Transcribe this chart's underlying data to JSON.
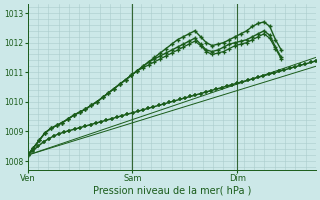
{
  "bg_color": "#cce8e8",
  "grid_color": "#aacccc",
  "line_color": "#1a5c1a",
  "marker_color": "#1a5c1a",
  "vline_color": "#336633",
  "ylim": [
    1007.7,
    1013.3
  ],
  "yticks": [
    1008,
    1009,
    1010,
    1011,
    1012,
    1013
  ],
  "xlabel": "Pression niveau de la mer( hPa )",
  "xtick_labels": [
    "Ven",
    "Sam",
    "Dim"
  ],
  "xtick_pos": [
    0.0,
    0.3636,
    0.7273
  ],
  "xlim": [
    0.0,
    1.0
  ],
  "vline_pos": [
    0.3636,
    0.7273
  ],
  "series_x": [
    [
      0.0,
      0.018,
      0.036,
      0.055,
      0.073,
      0.091,
      0.109,
      0.127,
      0.145,
      0.164,
      0.182,
      0.2,
      0.218,
      0.236,
      0.255,
      0.273,
      0.291,
      0.309,
      0.327,
      0.345,
      0.364,
      0.382,
      0.4,
      0.418,
      0.436,
      0.455,
      0.473,
      0.491,
      0.509,
      0.527,
      0.545,
      0.564,
      0.582,
      0.6,
      0.618,
      0.636,
      0.655,
      0.673,
      0.691,
      0.709,
      0.727,
      0.745,
      0.764,
      0.782,
      0.8,
      0.818,
      0.836,
      0.855,
      0.873,
      0.891,
      0.909,
      0.927,
      0.945,
      0.964,
      0.982,
      1.0
    ],
    [
      0.0,
      0.02,
      0.04,
      0.06,
      0.08,
      0.1,
      0.12,
      0.14,
      0.16,
      0.18,
      0.2,
      0.22,
      0.24,
      0.26,
      0.28,
      0.3,
      0.32,
      0.34,
      0.36,
      0.38,
      0.4,
      0.42,
      0.44,
      0.46,
      0.48,
      0.5,
      0.52,
      0.54,
      0.56,
      0.58,
      0.6,
      0.62,
      0.64,
      0.66,
      0.68,
      0.7,
      0.72,
      0.74,
      0.76,
      0.78,
      0.8,
      0.82,
      0.84,
      0.86,
      0.88
    ],
    [
      0.0,
      0.02,
      0.04,
      0.06,
      0.08,
      0.1,
      0.12,
      0.14,
      0.16,
      0.18,
      0.2,
      0.22,
      0.24,
      0.26,
      0.28,
      0.3,
      0.32,
      0.34,
      0.36,
      0.38,
      0.4,
      0.42,
      0.44,
      0.46,
      0.48,
      0.5,
      0.52,
      0.54,
      0.56,
      0.58,
      0.6,
      0.62,
      0.64,
      0.66,
      0.68,
      0.7,
      0.72,
      0.74,
      0.76,
      0.78,
      0.8,
      0.82,
      0.84,
      0.86,
      0.88
    ],
    [
      0.0,
      0.02,
      0.04,
      0.06,
      0.08,
      0.1,
      0.12,
      0.14,
      0.16,
      0.18,
      0.2,
      0.22,
      0.24,
      0.26,
      0.28,
      0.3,
      0.32,
      0.34,
      0.36,
      0.38,
      0.4,
      0.42,
      0.44,
      0.46,
      0.48,
      0.5,
      0.52,
      0.54,
      0.56,
      0.58,
      0.6,
      0.62,
      0.64,
      0.66,
      0.68,
      0.7,
      0.72,
      0.74,
      0.76,
      0.78,
      0.8,
      0.82,
      0.84,
      0.86,
      0.88
    ]
  ],
  "series_y": [
    [
      1008.2,
      1008.35,
      1008.5,
      1008.65,
      1008.75,
      1008.85,
      1008.92,
      1008.98,
      1009.03,
      1009.08,
      1009.13,
      1009.18,
      1009.23,
      1009.28,
      1009.33,
      1009.38,
      1009.43,
      1009.48,
      1009.53,
      1009.58,
      1009.63,
      1009.68,
      1009.73,
      1009.78,
      1009.83,
      1009.88,
      1009.93,
      1009.98,
      1010.03,
      1010.08,
      1010.13,
      1010.18,
      1010.23,
      1010.28,
      1010.33,
      1010.38,
      1010.43,
      1010.48,
      1010.53,
      1010.58,
      1010.63,
      1010.68,
      1010.73,
      1010.78,
      1010.83,
      1010.88,
      1010.93,
      1010.98,
      1011.03,
      1011.08,
      1011.13,
      1011.18,
      1011.23,
      1011.28,
      1011.33,
      1011.38
    ],
    [
      1008.2,
      1008.45,
      1008.7,
      1008.95,
      1009.1,
      1009.2,
      1009.3,
      1009.42,
      1009.55,
      1009.65,
      1009.75,
      1009.88,
      1010.0,
      1010.15,
      1010.3,
      1010.45,
      1010.6,
      1010.75,
      1010.9,
      1011.05,
      1011.2,
      1011.35,
      1011.5,
      1011.65,
      1011.8,
      1011.95,
      1012.1,
      1012.2,
      1012.3,
      1012.4,
      1012.2,
      1012.0,
      1011.9,
      1011.95,
      1012.0,
      1012.1,
      1012.2,
      1012.3,
      1012.4,
      1012.55,
      1012.65,
      1012.7,
      1012.55,
      1012.1,
      1011.75
    ],
    [
      1008.2,
      1008.45,
      1008.7,
      1008.95,
      1009.1,
      1009.2,
      1009.3,
      1009.42,
      1009.55,
      1009.65,
      1009.75,
      1009.88,
      1010.0,
      1010.15,
      1010.3,
      1010.45,
      1010.6,
      1010.75,
      1010.9,
      1011.05,
      1011.2,
      1011.35,
      1011.45,
      1011.55,
      1011.65,
      1011.75,
      1011.85,
      1011.95,
      1012.05,
      1012.15,
      1011.95,
      1011.75,
      1011.7,
      1011.75,
      1011.85,
      1011.95,
      1012.0,
      1012.05,
      1012.1,
      1012.2,
      1012.3,
      1012.4,
      1012.25,
      1011.85,
      1011.5
    ],
    [
      1008.2,
      1008.45,
      1008.7,
      1008.95,
      1009.1,
      1009.2,
      1009.3,
      1009.42,
      1009.55,
      1009.65,
      1009.75,
      1009.88,
      1010.0,
      1010.15,
      1010.3,
      1010.45,
      1010.6,
      1010.75,
      1010.9,
      1011.05,
      1011.15,
      1011.25,
      1011.35,
      1011.45,
      1011.55,
      1011.65,
      1011.75,
      1011.85,
      1011.95,
      1012.05,
      1011.9,
      1011.7,
      1011.6,
      1011.65,
      1011.7,
      1011.8,
      1011.9,
      1011.95,
      1012.0,
      1012.1,
      1012.2,
      1012.3,
      1012.15,
      1011.8,
      1011.45
    ]
  ],
  "straight_line": {
    "x": [
      0.0,
      1.0
    ],
    "y": [
      1008.2,
      1011.5
    ]
  },
  "straight_line2": {
    "x": [
      0.0,
      1.0
    ],
    "y": [
      1008.2,
      1011.2
    ]
  }
}
